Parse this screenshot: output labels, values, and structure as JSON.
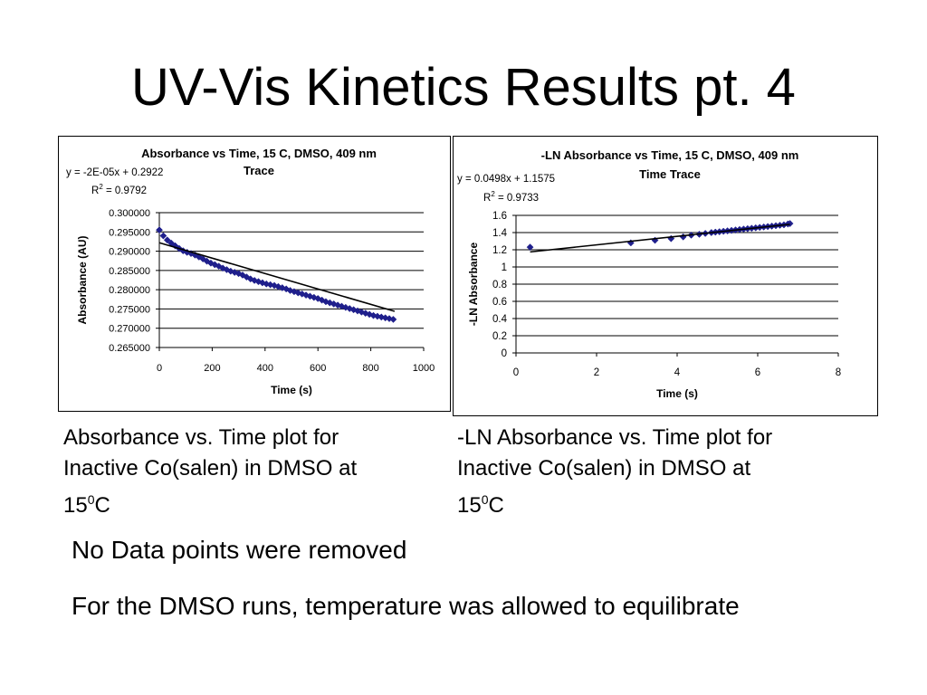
{
  "slide": {
    "title": "UV-Vis Kinetics Results pt. 4",
    "captions": [
      {
        "line1": "Absorbance vs. Time plot for",
        "line2": "Inactive Co(salen) in DMSO at",
        "line3_pre": "15",
        "line3_sup": "0",
        "line3_post": "C"
      },
      {
        "line1": "-LN Absorbance vs. Time plot for",
        "line2": "Inactive Co(salen) in DMSO at",
        "line3_pre": "15",
        "line3_sup": "0",
        "line3_post": "C"
      }
    ],
    "bullets": [
      "No Data points were removed",
      "For the DMSO runs, temperature was allowed to equilibrate"
    ]
  },
  "chart_data": [
    {
      "type": "scatter",
      "title_line1": "Absorbance vs Time, 15 C, DMSO, 409 nm",
      "title_line2": "Trace",
      "xlabel": "Time (s)",
      "ylabel": "Absorbance (AU)",
      "xlim": [
        0,
        1000
      ],
      "ylim": [
        0.265,
        0.3
      ],
      "xticks": [
        "0",
        "200",
        "400",
        "600",
        "800",
        "1000"
      ],
      "yticks": [
        "0.265000",
        "0.270000",
        "0.275000",
        "0.280000",
        "0.285000",
        "0.290000",
        "0.295000",
        "0.300000"
      ],
      "grid": "horizontal",
      "marker_color": "#1f1f8c",
      "trendline": {
        "equation": "y = -2E-05x + 0.2922",
        "r2_label": "R",
        "r2_sup": "2",
        "r2_value": " = 0.9792",
        "slope": -2e-05,
        "intercept": 0.2922,
        "x_range": [
          0,
          890
        ]
      },
      "x": [
        0,
        15,
        30,
        45,
        60,
        75,
        90,
        105,
        120,
        135,
        150,
        165,
        180,
        195,
        210,
        225,
        240,
        255,
        270,
        285,
        300,
        315,
        330,
        345,
        360,
        375,
        390,
        405,
        420,
        435,
        450,
        465,
        480,
        495,
        510,
        525,
        540,
        555,
        570,
        585,
        600,
        615,
        630,
        645,
        660,
        675,
        690,
        705,
        720,
        735,
        750,
        765,
        780,
        795,
        810,
        825,
        840,
        855,
        870,
        885
      ],
      "y": [
        0.2955,
        0.294,
        0.2929,
        0.2921,
        0.2914,
        0.2907,
        0.2901,
        0.2897,
        0.2894,
        0.289,
        0.2885,
        0.288,
        0.2874,
        0.2869,
        0.2865,
        0.2861,
        0.2856,
        0.2852,
        0.2848,
        0.2845,
        0.2842,
        0.2838,
        0.2833,
        0.2828,
        0.2824,
        0.2821,
        0.2818,
        0.2815,
        0.2813,
        0.2811,
        0.2808,
        0.2805,
        0.2802,
        0.2798,
        0.2795,
        0.2792,
        0.2789,
        0.2786,
        0.2783,
        0.278,
        0.2777,
        0.2773,
        0.2769,
        0.2766,
        0.2763,
        0.276,
        0.2757,
        0.2754,
        0.2751,
        0.2748,
        0.2745,
        0.2742,
        0.2739,
        0.2736,
        0.2733,
        0.2731,
        0.2729,
        0.2727,
        0.2725,
        0.2723
      ]
    },
    {
      "type": "scatter",
      "title_line1": "-LN Absorbance vs Time, 15 C, DMSO, 409 nm",
      "title_line2": "Time Trace",
      "xlabel": "Time (s)",
      "ylabel": "-LN Absorbance",
      "xlim": [
        0,
        8
      ],
      "ylim": [
        0,
        1.6
      ],
      "xticks": [
        "0",
        "2",
        "4",
        "6",
        "8"
      ],
      "yticks": [
        "0",
        "0.2",
        "0.4",
        "0.6",
        "0.8",
        "1",
        "1.2",
        "1.4",
        "1.6"
      ],
      "grid": "horizontal",
      "marker_color": "#1f1f8c",
      "trendline": {
        "equation": "y = 0.0498x + 1.1575",
        "r2_label": "R",
        "r2_sup": "2",
        "r2_value": " = 0.9733",
        "slope": 0.0498,
        "intercept": 1.1575,
        "x_range": [
          0.35,
          6.8
        ]
      },
      "x": [
        0.35,
        2.85,
        3.45,
        3.85,
        4.15,
        4.35,
        4.55,
        4.7,
        4.85,
        4.95,
        5.05,
        5.15,
        5.25,
        5.35,
        5.45,
        5.55,
        5.65,
        5.75,
        5.85,
        5.95,
        6.05,
        6.15,
        6.25,
        6.35,
        6.45,
        6.55,
        6.65,
        6.75,
        6.8
      ],
      "y": [
        1.23,
        1.28,
        1.31,
        1.33,
        1.35,
        1.37,
        1.38,
        1.39,
        1.4,
        1.405,
        1.41,
        1.415,
        1.42,
        1.425,
        1.43,
        1.435,
        1.44,
        1.445,
        1.45,
        1.455,
        1.46,
        1.465,
        1.47,
        1.475,
        1.48,
        1.485,
        1.49,
        1.5,
        1.505
      ]
    }
  ]
}
